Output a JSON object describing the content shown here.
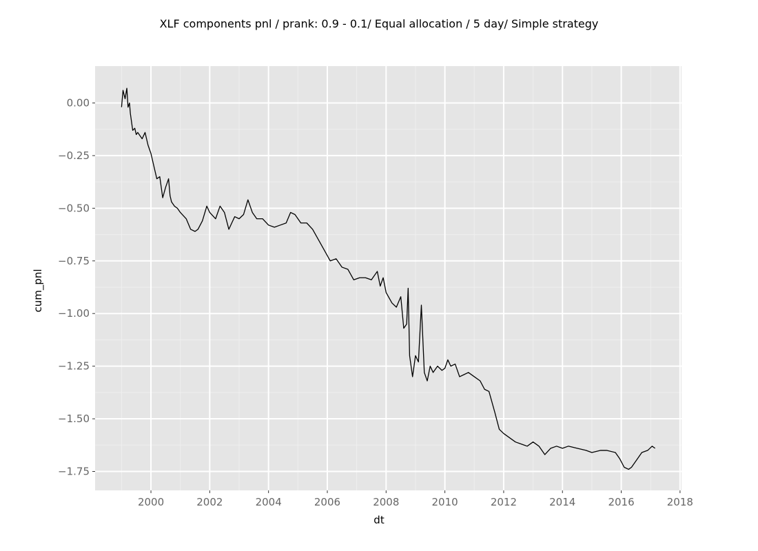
{
  "chart_data": {
    "type": "line",
    "title": "XLF components pnl / prank: 0.9 - 0.1/ Equal allocation / 5 day/ Simple strategy",
    "xlabel": "dt",
    "ylabel": "cum_pnl",
    "x_ticks": [
      "2000",
      "2002",
      "2004",
      "2006",
      "2008",
      "2010",
      "2012",
      "2014",
      "2016",
      "2018"
    ],
    "y_ticks": [
      "0.00",
      "−0.25",
      "−0.50",
      "−0.75",
      "−1.00",
      "−1.25",
      "−1.50",
      "−1.75"
    ],
    "y_tick_values": [
      0,
      -0.25,
      -0.5,
      -0.75,
      -1.0,
      -1.25,
      -1.5,
      -1.75
    ],
    "xlim": [
      1998.1,
      2018.05
    ],
    "ylim": [
      -1.84,
      0.175
    ],
    "grid": true,
    "legend": "none",
    "colors": {
      "panel_bg": "#e5e5e5",
      "grid_major": "#ffffff",
      "grid_minor": "#efefef",
      "line": "#000000",
      "tick_text": "#666666"
    },
    "series": [
      {
        "x": [
          1999.0,
          1999.05,
          1999.12,
          1999.18,
          1999.22,
          1999.27,
          1999.3,
          1999.38,
          1999.45,
          1999.5,
          1999.55,
          1999.6,
          1999.7,
          1999.8,
          1999.9,
          2000.0,
          2000.1,
          2000.2,
          2000.3,
          2000.4,
          2000.5,
          2000.6,
          2000.65,
          2000.7,
          2000.8,
          2000.9,
          2001.0,
          2001.2,
          2001.35,
          2001.5,
          2001.6,
          2001.75,
          2001.9,
          2002.0,
          2002.2,
          2002.35,
          2002.5,
          2002.65,
          2002.75,
          2002.85,
          2003.0,
          2003.15,
          2003.3,
          2003.45,
          2003.6,
          2003.8,
          2004.0,
          2004.2,
          2004.4,
          2004.6,
          2004.75,
          2004.9,
          2005.1,
          2005.3,
          2005.5,
          2005.7,
          2005.9,
          2006.1,
          2006.3,
          2006.5,
          2006.7,
          2006.9,
          2007.1,
          2007.3,
          2007.5,
          2007.7,
          2007.8,
          2007.9,
          2008.0,
          2008.2,
          2008.35,
          2008.5,
          2008.6,
          2008.7,
          2008.75,
          2008.8,
          2008.9,
          2009.0,
          2009.1,
          2009.2,
          2009.3,
          2009.4,
          2009.5,
          2009.6,
          2009.75,
          2009.9,
          2010.0,
          2010.1,
          2010.2,
          2010.35,
          2010.5,
          2010.65,
          2010.8,
          2011.0,
          2011.2,
          2011.35,
          2011.5,
          2011.7,
          2011.85,
          2012.0,
          2012.2,
          2012.4,
          2012.6,
          2012.8,
          2013.0,
          2013.2,
          2013.4,
          2013.6,
          2013.8,
          2014.0,
          2014.2,
          2014.5,
          2014.8,
          2015.0,
          2015.3,
          2015.5,
          2015.8,
          2015.95,
          2016.1,
          2016.25,
          2016.35,
          2016.5,
          2016.7,
          2016.9,
          2017.05,
          2017.15
        ],
        "y": [
          -0.02,
          0.06,
          0.02,
          0.07,
          -0.02,
          0.0,
          -0.05,
          -0.13,
          -0.12,
          -0.15,
          -0.14,
          -0.15,
          -0.17,
          -0.14,
          -0.2,
          -0.24,
          -0.3,
          -0.36,
          -0.35,
          -0.45,
          -0.4,
          -0.36,
          -0.44,
          -0.47,
          -0.49,
          -0.5,
          -0.52,
          -0.55,
          -0.6,
          -0.61,
          -0.6,
          -0.56,
          -0.49,
          -0.52,
          -0.55,
          -0.49,
          -0.52,
          -0.6,
          -0.57,
          -0.54,
          -0.55,
          -0.53,
          -0.46,
          -0.52,
          -0.55,
          -0.55,
          -0.58,
          -0.59,
          -0.58,
          -0.57,
          -0.52,
          -0.53,
          -0.57,
          -0.57,
          -0.6,
          -0.65,
          -0.7,
          -0.75,
          -0.74,
          -0.78,
          -0.79,
          -0.84,
          -0.83,
          -0.83,
          -0.84,
          -0.8,
          -0.87,
          -0.83,
          -0.9,
          -0.95,
          -0.97,
          -0.92,
          -1.07,
          -1.05,
          -0.88,
          -1.2,
          -1.3,
          -1.2,
          -1.23,
          -0.96,
          -1.28,
          -1.32,
          -1.25,
          -1.28,
          -1.25,
          -1.27,
          -1.26,
          -1.22,
          -1.25,
          -1.24,
          -1.3,
          -1.29,
          -1.28,
          -1.3,
          -1.32,
          -1.36,
          -1.37,
          -1.47,
          -1.55,
          -1.57,
          -1.59,
          -1.61,
          -1.62,
          -1.63,
          -1.61,
          -1.63,
          -1.67,
          -1.64,
          -1.63,
          -1.64,
          -1.63,
          -1.64,
          -1.65,
          -1.66,
          -1.65,
          -1.65,
          -1.66,
          -1.69,
          -1.73,
          -1.74,
          -1.73,
          -1.7,
          -1.66,
          -1.65,
          -1.63,
          -1.64
        ]
      }
    ]
  }
}
